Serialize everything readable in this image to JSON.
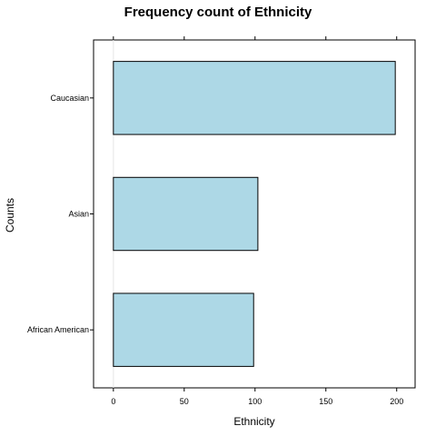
{
  "chart_data": {
    "type": "bar",
    "orientation": "horizontal",
    "title": "Frequency count of Ethnicity",
    "xlabel": "Ethnicity",
    "ylabel": "Counts",
    "categories": [
      "African American",
      "Asian",
      "Caucasian"
    ],
    "values": [
      99,
      102,
      199
    ],
    "xlim": [
      -14,
      213
    ],
    "xticks": [
      0,
      50,
      100,
      150,
      200
    ],
    "xtick_labels": [
      "0",
      "50",
      "100",
      "150",
      "200"
    ],
    "grid": false,
    "legend": "none",
    "bar_color": "#add8e6",
    "bar_edge_color": "#000000",
    "reference_line_color": "#e6e6e6"
  }
}
